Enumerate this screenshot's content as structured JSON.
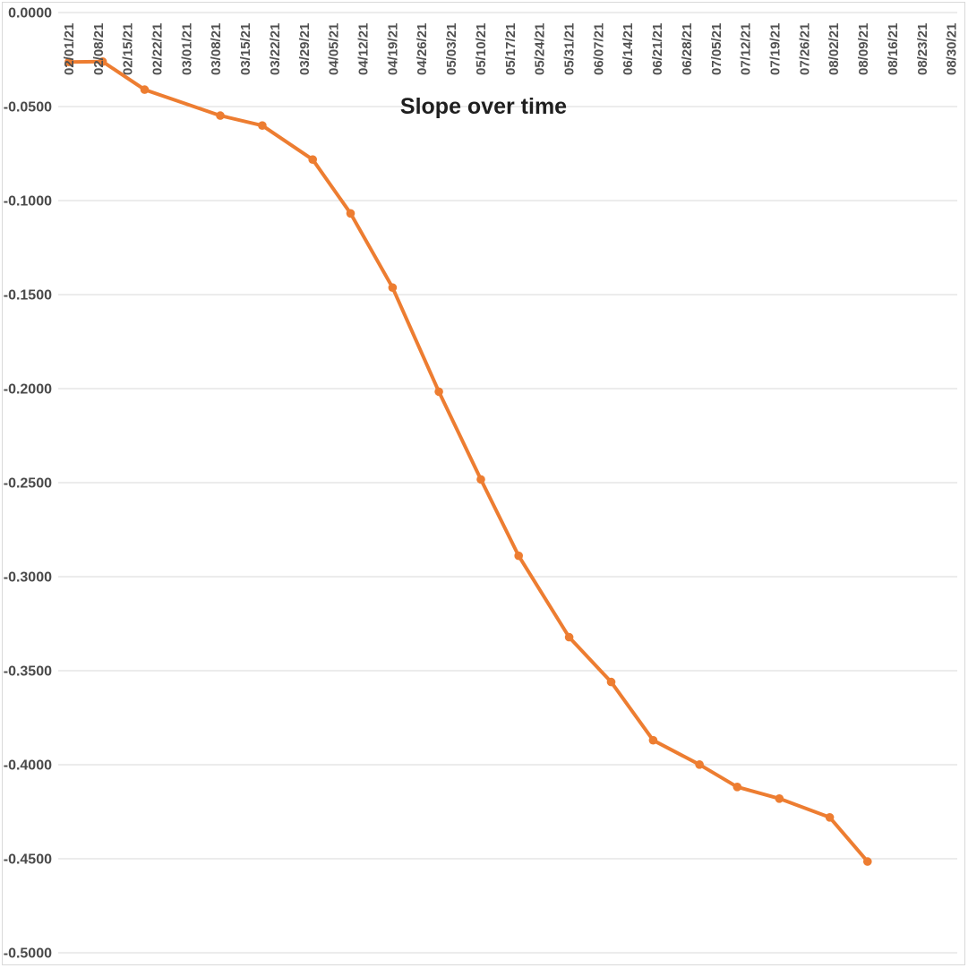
{
  "chart_data": {
    "type": "line",
    "title": "Slope over time",
    "legend": "none",
    "grid": "horizontal",
    "x_axis": {
      "position": "top",
      "tick_label_rotation_deg": 90,
      "tick_labels": [
        "02/01/21",
        "02/08/21",
        "02/15/21",
        "02/22/21",
        "03/01/21",
        "03/08/21",
        "03/15/21",
        "03/22/21",
        "03/29/21",
        "04/05/21",
        "04/12/21",
        "04/19/21",
        "04/26/21",
        "05/03/21",
        "05/10/21",
        "05/17/21",
        "05/24/21",
        "05/31/21",
        "06/07/21",
        "06/14/21",
        "06/21/21",
        "06/28/21",
        "07/05/21",
        "07/12/21",
        "07/19/21",
        "07/26/21",
        "08/02/21",
        "08/09/21",
        "08/16/21",
        "08/23/21",
        "08/30/21"
      ]
    },
    "y_axis": {
      "max": 0.0,
      "min": -0.5,
      "step": 0.05,
      "tick_labels": [
        "0.0000",
        "-0.0500",
        "-0.1000",
        "-0.1500",
        "-0.2000",
        "-0.2500",
        "-0.3000",
        "-0.3500",
        "-0.4000",
        "-0.4500",
        "-0.5000"
      ]
    },
    "series": [
      {
        "name": "Slope",
        "color": "#ED7D31",
        "marker": "circle",
        "points": [
          {
            "date": "02/01/21",
            "value": -0.0263
          },
          {
            "date": "02/09/21",
            "value": -0.0261
          },
          {
            "date": "02/19/21",
            "value": -0.041
          },
          {
            "date": "03/09/21",
            "value": -0.0548
          },
          {
            "date": "03/19/21",
            "value": -0.0601
          },
          {
            "date": "03/31/21",
            "value": -0.0782
          },
          {
            "date": "04/09/21",
            "value": -0.1068
          },
          {
            "date": "04/19/21",
            "value": -0.1463
          },
          {
            "date": "04/30/21",
            "value": -0.2016
          },
          {
            "date": "05/10/21",
            "value": -0.2483
          },
          {
            "date": "05/19/21",
            "value": -0.2889
          },
          {
            "date": "05/31/21",
            "value": -0.3322
          },
          {
            "date": "06/10/21",
            "value": -0.356
          },
          {
            "date": "06/20/21",
            "value": -0.387
          },
          {
            "date": "07/01/21",
            "value": -0.3999
          },
          {
            "date": "07/10/21",
            "value": -0.4118
          },
          {
            "date": "07/20/21",
            "value": -0.418
          },
          {
            "date": "08/01/21",
            "value": -0.428
          },
          {
            "date": "08/10/21",
            "value": -0.4515
          }
        ]
      }
    ]
  },
  "colors": {
    "line": "#ED7D31",
    "gridline": "#D9D9D9",
    "chart_border": "#D9D9D9",
    "y_tick_text": "#4A4A4A",
    "x_tick_text": "#505050",
    "title_text": "#1F1F1F",
    "background": "#FFFFFF"
  }
}
